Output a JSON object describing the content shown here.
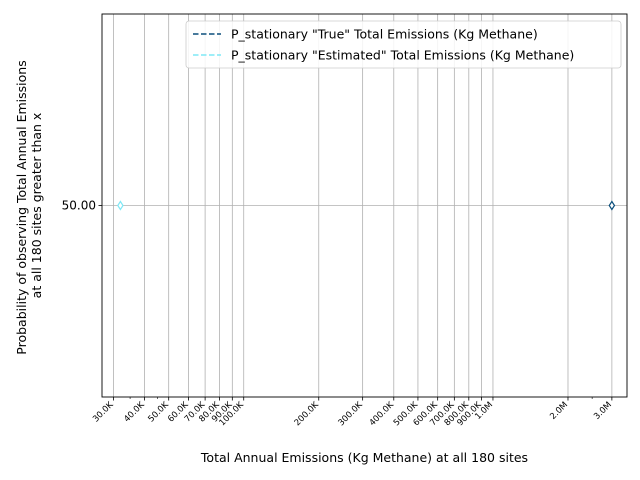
{
  "chart_data": {
    "type": "line",
    "xlabel": "Total Annual Emissions (Kg Methane) at all 180 sites",
    "ylabel_lines": [
      "Probability of observing Total Annual Emissions",
      "at all 180 sites greater than x"
    ],
    "x_scale": "log",
    "xlim": [
      27000,
      3450000
    ],
    "ylim": [
      0,
      100
    ],
    "x_ticks": [
      {
        "value": 30000,
        "label": "30.0K"
      },
      {
        "value": 40000,
        "label": "40.0K"
      },
      {
        "value": 50000,
        "label": "50.0K"
      },
      {
        "value": 60000,
        "label": "60.0K"
      },
      {
        "value": 70000,
        "label": "70.0K"
      },
      {
        "value": 80000,
        "label": "80.0K"
      },
      {
        "value": 90000,
        "label": "90.0K"
      },
      {
        "value": 100000,
        "label": "100.0K"
      },
      {
        "value": 200000,
        "label": "200.0K"
      },
      {
        "value": 300000,
        "label": "300.0K"
      },
      {
        "value": 400000,
        "label": "400.0K"
      },
      {
        "value": 500000,
        "label": "500.0K"
      },
      {
        "value": 600000,
        "label": "600.0K"
      },
      {
        "value": 700000,
        "label": "700.0K"
      },
      {
        "value": 800000,
        "label": "800.0K"
      },
      {
        "value": 900000,
        "label": "900.0K"
      },
      {
        "value": 1000000,
        "label": "1.0M"
      },
      {
        "value": 2000000,
        "label": "2.0M"
      },
      {
        "value": 3000000,
        "label": "3.0M"
      }
    ],
    "y_ticks": [
      {
        "value": 50,
        "label": "50.00"
      }
    ],
    "grid": true,
    "legend_position": "top-right",
    "series": [
      {
        "name": "P_stationary \"True\" Total Emissions (Kg Methane)",
        "color": "#0b4f7c",
        "dash": "dashed",
        "marker": "diamond",
        "points": [
          {
            "x": 3000000,
            "y": 50
          }
        ]
      },
      {
        "name": "P_stationary \"Estimated\" Total Emissions (Kg Methane)",
        "color": "#7fe8f5",
        "dash": "dashed",
        "marker": "diamond",
        "points": [
          {
            "x": 32000,
            "y": 50
          }
        ]
      }
    ]
  }
}
